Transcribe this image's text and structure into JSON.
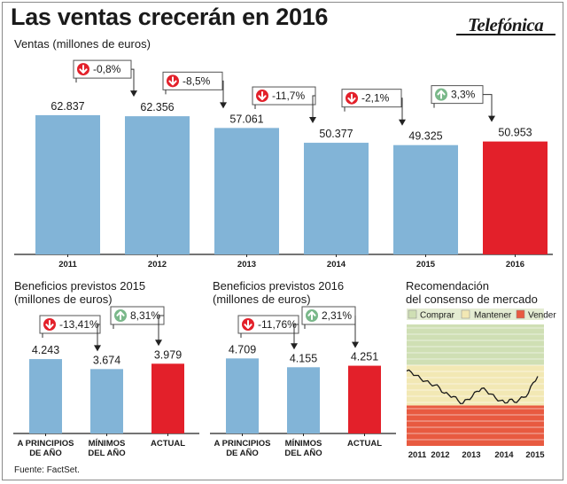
{
  "header": {
    "title": "Las ventas crecerán en 2016",
    "brand": "Telefónica"
  },
  "footer": {
    "source": "Fuente: FactSet."
  },
  "colors": {
    "bar": "#82b4d7",
    "highlight": "#e3202a",
    "down": "#e3202a",
    "up": "#7ab88a",
    "comprar": "#cfdfb4",
    "mantener": "#f2e8b4",
    "vender": "#e85a40",
    "consensus_line": "#1a1a1a"
  },
  "chart_data": [
    {
      "type": "bar",
      "title": "Ventas (millones de euros)",
      "categories": [
        "2011",
        "2012",
        "2013",
        "2014",
        "2015",
        "2016"
      ],
      "values": [
        62837,
        62356,
        57061,
        50377,
        49325,
        50953
      ],
      "value_labels": [
        "62.837",
        "62.356",
        "57.061",
        "50.377",
        "49.325",
        "50.953"
      ],
      "highlight": [
        "2016"
      ],
      "changes": [
        {
          "label": "-0,8%",
          "direction": "down"
        },
        {
          "label": "-8,5%",
          "direction": "down"
        },
        {
          "label": "-11,7%",
          "direction": "down"
        },
        {
          "label": "-2,1%",
          "direction": "down"
        },
        {
          "label": "3,3%",
          "direction": "up"
        }
      ],
      "ylim": [
        0,
        66000
      ]
    },
    {
      "type": "bar",
      "title": "Beneficios previstos 2015 (millones de euros)",
      "title_lines": [
        "Beneficios previstos 2015",
        "(millones de euros)"
      ],
      "categories": [
        [
          "A PRINCIPIOS",
          "DE AÑO"
        ],
        [
          "MÍNIMOS",
          "DEL AÑO"
        ],
        [
          "ACTUAL"
        ]
      ],
      "values": [
        4243,
        3674,
        3979
      ],
      "value_labels": [
        "4.243",
        "3.674",
        "3.979"
      ],
      "highlight": [
        2
      ],
      "changes": [
        {
          "label": "-13,41%",
          "direction": "down"
        },
        {
          "label": "8,31%",
          "direction": "up"
        }
      ],
      "ylim": [
        0,
        4500
      ]
    },
    {
      "type": "bar",
      "title": "Beneficios previstos 2016 (millones de euros)",
      "title_lines": [
        "Beneficios previstos 2016",
        "(millones de euros)"
      ],
      "categories": [
        [
          "A PRINCIPIOS",
          "DE AÑO"
        ],
        [
          "MÍNIMOS",
          "DEL AÑO"
        ],
        [
          "ACTUAL"
        ]
      ],
      "values": [
        4709,
        4155,
        4251
      ],
      "value_labels": [
        "4.709",
        "4.155",
        "4.251"
      ],
      "highlight": [
        2
      ],
      "changes": [
        {
          "label": "-11,76%",
          "direction": "down"
        },
        {
          "label": "2,31%",
          "direction": "up"
        }
      ],
      "ylim": [
        0,
        4950
      ]
    },
    {
      "type": "area",
      "title": "Recomendación del consenso de mercado",
      "title_lines": [
        "Recomendación",
        "del consenso de mercado"
      ],
      "legend": [
        "Comprar",
        "Mantener",
        "Vender"
      ],
      "x": [
        "2011",
        "2012",
        "2013",
        "2014",
        "2015"
      ],
      "bands": {
        "vender": [
          0,
          1
        ],
        "mantener": [
          1,
          2
        ],
        "comprar": [
          2,
          3
        ]
      },
      "consensus_score": [
        1.85,
        1.82,
        1.74,
        1.66,
        1.6,
        1.54,
        1.5,
        1.44,
        1.3,
        1.26,
        1.22,
        1.12,
        1.05,
        1.15,
        1.22,
        1.35,
        1.42,
        1.36,
        1.28,
        1.18,
        1.12,
        1.06,
        1.15,
        1.08,
        1.14,
        1.2,
        1.3,
        1.56,
        1.72
      ],
      "ylim": [
        0,
        3
      ]
    }
  ]
}
